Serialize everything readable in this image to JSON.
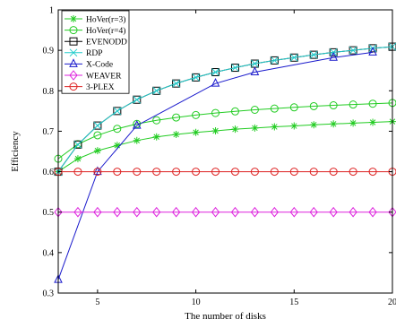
{
  "chart_data": {
    "type": "line",
    "title": "",
    "xlabel": "The number of disks",
    "ylabel": "Efficiency",
    "xlim": [
      3,
      20
    ],
    "ylim": [
      0.3,
      1
    ],
    "x_ticks": [
      5,
      10,
      15,
      20
    ],
    "x_tick_labels": [
      "5",
      "10",
      "15",
      "20"
    ],
    "y_ticks": [
      0.3,
      0.4,
      0.5,
      0.6,
      0.7,
      0.8,
      0.9,
      1
    ],
    "y_tick_labels": [
      "0.3",
      "0.4",
      "0.5",
      "0.6",
      "0.7",
      "0.8",
      "0.9",
      "1"
    ],
    "grid": false,
    "legend_position": "top-left",
    "series": [
      {
        "name": "HoVer(r=3)",
        "color": "#22cc22",
        "marker": "asterisk",
        "x": [
          3,
          4,
          5,
          6,
          7,
          8,
          9,
          10,
          11,
          12,
          13,
          14,
          15,
          16,
          17,
          18,
          19,
          20
        ],
        "y": [
          0.6,
          0.632,
          0.652,
          0.665,
          0.677,
          0.686,
          0.692,
          0.697,
          0.701,
          0.705,
          0.708,
          0.711,
          0.713,
          0.716,
          0.718,
          0.72,
          0.722,
          0.724
        ]
      },
      {
        "name": "HoVer(r=4)",
        "color": "#22cc22",
        "marker": "circle",
        "x": [
          3,
          4,
          5,
          6,
          7,
          8,
          9,
          10,
          11,
          12,
          13,
          14,
          15,
          16,
          17,
          18,
          19,
          20
        ],
        "y": [
          0.632,
          0.668,
          0.69,
          0.706,
          0.718,
          0.727,
          0.734,
          0.74,
          0.745,
          0.749,
          0.753,
          0.756,
          0.759,
          0.762,
          0.764,
          0.766,
          0.768,
          0.77
        ]
      },
      {
        "name": "EVENODD",
        "color": "#000000",
        "marker": "square",
        "x": [
          3,
          4,
          5,
          6,
          7,
          8,
          9,
          10,
          11,
          12,
          13,
          14,
          15,
          16,
          17,
          18,
          19,
          20
        ],
        "y": [
          0.6,
          0.667,
          0.714,
          0.75,
          0.778,
          0.8,
          0.818,
          0.833,
          0.846,
          0.857,
          0.867,
          0.875,
          0.882,
          0.889,
          0.895,
          0.9,
          0.905,
          0.909
        ]
      },
      {
        "name": "RDP",
        "color": "#22cccc",
        "marker": "x",
        "x": [
          3,
          4,
          5,
          6,
          7,
          8,
          9,
          10,
          11,
          12,
          13,
          14,
          15,
          16,
          17,
          18,
          19,
          20
        ],
        "y": [
          0.6,
          0.667,
          0.714,
          0.75,
          0.778,
          0.8,
          0.818,
          0.833,
          0.846,
          0.857,
          0.867,
          0.875,
          0.882,
          0.889,
          0.895,
          0.9,
          0.905,
          0.909
        ]
      },
      {
        "name": "X-Code",
        "color": "#1a1acc",
        "marker": "triangle",
        "x": [
          3,
          5,
          7,
          11,
          13,
          17,
          19
        ],
        "y": [
          0.333,
          0.6,
          0.714,
          0.818,
          0.846,
          0.882,
          0.895
        ]
      },
      {
        "name": "WEAVER",
        "color": "#dd22dd",
        "marker": "diamond",
        "x": [
          3,
          4,
          5,
          6,
          7,
          8,
          9,
          10,
          11,
          12,
          13,
          14,
          15,
          16,
          17,
          18,
          19,
          20
        ],
        "y": [
          0.5,
          0.5,
          0.5,
          0.5,
          0.5,
          0.5,
          0.5,
          0.5,
          0.5,
          0.5,
          0.5,
          0.5,
          0.5,
          0.5,
          0.5,
          0.5,
          0.5,
          0.5
        ]
      },
      {
        "name": "3-PLEX",
        "color": "#dd2222",
        "marker": "circle",
        "x": [
          3,
          4,
          5,
          6,
          7,
          8,
          9,
          10,
          11,
          12,
          13,
          14,
          15,
          16,
          17,
          18,
          19,
          20
        ],
        "y": [
          0.6,
          0.6,
          0.6,
          0.6,
          0.6,
          0.6,
          0.6,
          0.6,
          0.6,
          0.6,
          0.6,
          0.6,
          0.6,
          0.6,
          0.6,
          0.6,
          0.6,
          0.6
        ]
      }
    ]
  }
}
